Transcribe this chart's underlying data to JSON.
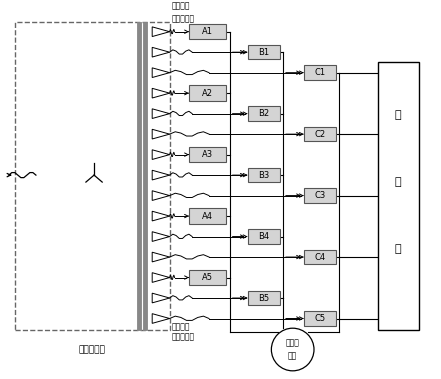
{
  "fig_width": 4.41,
  "fig_height": 3.79,
  "dpi": 100,
  "bg_color": "#ffffff",
  "lc": "#000000",
  "gray_line": "#888888",
  "box_fc": "#d4d4d4",
  "box_ec": "#555555",
  "ctrl_fc": "#ffffff",
  "transformer_label": "移相变压器",
  "top_label1": "功率单元",
  "top_label2": "输入电流端",
  "bottom_label1": "功率单元",
  "bottom_label2": "输入电流端",
  "motor_label1": "电动机",
  "motor_label2": "负载",
  "ctrl_chars": [
    "控",
    "制",
    "器"
  ],
  "xlim": [
    0,
    441
  ],
  "ylim": [
    0,
    379
  ]
}
